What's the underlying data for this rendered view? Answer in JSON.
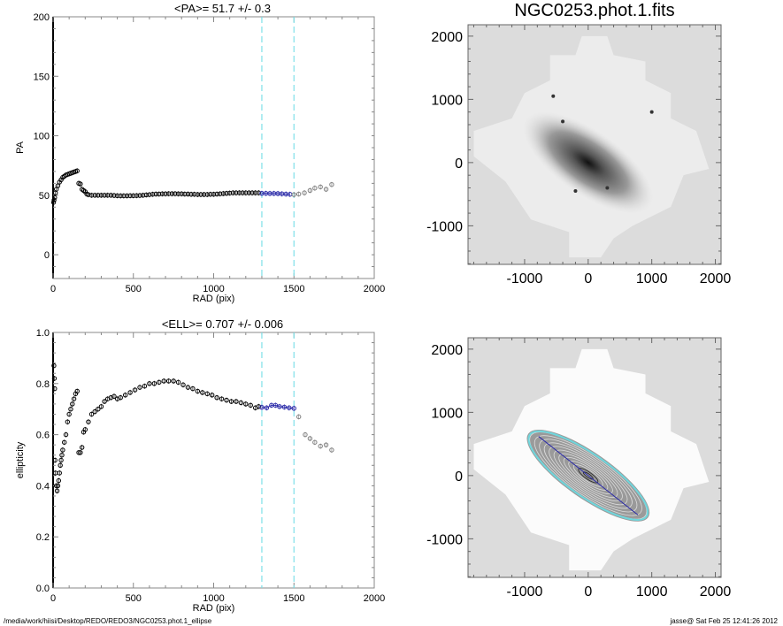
{
  "chart_data": [
    {
      "type": "scatter",
      "title": "<PA>=  51.7 +/-   0.3",
      "xlabel": "RAD (pix)",
      "ylabel": "PA",
      "xlim": [
        0,
        2000
      ],
      "ylim": [
        -20,
        200
      ],
      "xticks": [
        "0",
        "500",
        "1000",
        "1500",
        "2000"
      ],
      "yticks": [
        "0",
        "50",
        "100",
        "150",
        "200"
      ],
      "xtick_values": [
        0,
        500,
        1000,
        1500,
        2000
      ],
      "ytick_values": [
        0,
        50,
        100,
        150,
        200
      ],
      "vlines": [
        1300,
        1500
      ],
      "vline_color": "#7fe0e8",
      "series": [
        {
          "color": "#000000",
          "points": [
            [
              3,
              44
            ],
            [
              6,
              46
            ],
            [
              10,
              48
            ],
            [
              15,
              52
            ],
            [
              20,
              55
            ],
            [
              30,
              58
            ],
            [
              40,
              61
            ],
            [
              50,
              63
            ],
            [
              60,
              65
            ],
            [
              70,
              66
            ],
            [
              80,
              67
            ],
            [
              90,
              67.5
            ],
            [
              100,
              68
            ],
            [
              110,
              68.5
            ],
            [
              120,
              69
            ],
            [
              130,
              69.5
            ],
            [
              140,
              70
            ],
            [
              150,
              70.5
            ],
            [
              160,
              60
            ],
            [
              170,
              59.5
            ],
            [
              180,
              55
            ],
            [
              190,
              54
            ],
            [
              200,
              53
            ],
            [
              210,
              51
            ],
            [
              220,
              50.5
            ],
            [
              240,
              50
            ],
            [
              260,
              50
            ],
            [
              280,
              50
            ],
            [
              300,
              50
            ],
            [
              320,
              50
            ],
            [
              340,
              50
            ],
            [
              360,
              50
            ],
            [
              380,
              49.8
            ],
            [
              400,
              49.6
            ],
            [
              420,
              49.5
            ],
            [
              440,
              49.5
            ],
            [
              460,
              49.5
            ],
            [
              480,
              49.6
            ],
            [
              500,
              49.6
            ],
            [
              520,
              49.7
            ],
            [
              540,
              49.8
            ],
            [
              560,
              50
            ],
            [
              580,
              50.3
            ],
            [
              600,
              50.5
            ],
            [
              620,
              50.8
            ],
            [
              640,
              51
            ],
            [
              660,
              51
            ],
            [
              680,
              51.2
            ],
            [
              700,
              51.2
            ],
            [
              720,
              51.3
            ],
            [
              740,
              51.3
            ],
            [
              760,
              51.3
            ],
            [
              780,
              51.2
            ],
            [
              800,
              51.2
            ],
            [
              820,
              51
            ],
            [
              840,
              51
            ],
            [
              860,
              50.8
            ],
            [
              880,
              50.8
            ],
            [
              900,
              50.6
            ],
            [
              920,
              50.6
            ],
            [
              940,
              50.6
            ],
            [
              960,
              50.6
            ],
            [
              980,
              50.8
            ],
            [
              1000,
              50.8
            ],
            [
              1020,
              51
            ],
            [
              1040,
              51.2
            ],
            [
              1060,
              51.4
            ],
            [
              1080,
              51.6
            ],
            [
              1100,
              51.8
            ],
            [
              1120,
              52
            ],
            [
              1140,
              52
            ],
            [
              1160,
              52
            ],
            [
              1180,
              52
            ],
            [
              1200,
              52
            ],
            [
              1220,
              52
            ],
            [
              1240,
              52
            ],
            [
              1260,
              52
            ],
            [
              1280,
              52
            ]
          ]
        },
        {
          "color": "#2a2aa8",
          "points": [
            [
              1300,
              51.6
            ],
            [
              1325,
              51.6
            ],
            [
              1350,
              51.5
            ],
            [
              1375,
              51.5
            ],
            [
              1400,
              51.4
            ],
            [
              1425,
              51.2
            ],
            [
              1450,
              51
            ],
            [
              1475,
              50.8
            ]
          ]
        },
        {
          "color": "#808080",
          "points": [
            [
              1500,
              50.5
            ],
            [
              1530,
              51
            ],
            [
              1565,
              52
            ],
            [
              1600,
              54
            ],
            [
              1630,
              56
            ],
            [
              1665,
              57
            ],
            [
              1700,
              55
            ],
            [
              1735,
              59
            ]
          ]
        }
      ]
    },
    {
      "type": "scatter",
      "title": "<ELL>= 0.707 +/-  0.006",
      "xlabel": "RAD (pix)",
      "ylabel": "ellipticity",
      "xlim": [
        0,
        2000
      ],
      "ylim": [
        0,
        1
      ],
      "xticks": [
        "0",
        "500",
        "1000",
        "1500",
        "2000"
      ],
      "yticks": [
        "0.0",
        "0.2",
        "0.4",
        "0.6",
        "0.8",
        "1.0"
      ],
      "xtick_values": [
        0,
        500,
        1000,
        1500,
        2000
      ],
      "ytick_values": [
        0,
        0.2,
        0.4,
        0.6,
        0.8,
        1.0
      ],
      "vlines": [
        1300,
        1500
      ],
      "vline_color": "#7fe0e8",
      "series": [
        {
          "color": "#000000",
          "points": [
            [
              5,
              0.87
            ],
            [
              8,
              0.82
            ],
            [
              10,
              0.78
            ],
            [
              12,
              0.5
            ],
            [
              15,
              0.45
            ],
            [
              20,
              0.4
            ],
            [
              25,
              0.38
            ],
            [
              30,
              0.4
            ],
            [
              35,
              0.42
            ],
            [
              40,
              0.45
            ],
            [
              45,
              0.48
            ],
            [
              50,
              0.5
            ],
            [
              55,
              0.52
            ],
            [
              60,
              0.54
            ],
            [
              70,
              0.57
            ],
            [
              80,
              0.6
            ],
            [
              90,
              0.65
            ],
            [
              100,
              0.68
            ],
            [
              110,
              0.7
            ],
            [
              120,
              0.72
            ],
            [
              130,
              0.74
            ],
            [
              140,
              0.76
            ],
            [
              150,
              0.77
            ],
            [
              160,
              0.53
            ],
            [
              170,
              0.53
            ],
            [
              180,
              0.55
            ],
            [
              190,
              0.61
            ],
            [
              200,
              0.62
            ],
            [
              220,
              0.65
            ],
            [
              240,
              0.68
            ],
            [
              260,
              0.69
            ],
            [
              280,
              0.7
            ],
            [
              300,
              0.71
            ],
            [
              320,
              0.73
            ],
            [
              340,
              0.74
            ],
            [
              360,
              0.745
            ],
            [
              380,
              0.75
            ],
            [
              400,
              0.74
            ],
            [
              420,
              0.745
            ],
            [
              450,
              0.755
            ],
            [
              480,
              0.765
            ],
            [
              510,
              0.775
            ],
            [
              540,
              0.785
            ],
            [
              570,
              0.79
            ],
            [
              600,
              0.8
            ],
            [
              630,
              0.8
            ],
            [
              660,
              0.805
            ],
            [
              690,
              0.81
            ],
            [
              720,
              0.81
            ],
            [
              750,
              0.81
            ],
            [
              780,
              0.805
            ],
            [
              810,
              0.795
            ],
            [
              840,
              0.785
            ],
            [
              870,
              0.78
            ],
            [
              900,
              0.77
            ],
            [
              930,
              0.765
            ],
            [
              960,
              0.76
            ],
            [
              990,
              0.755
            ],
            [
              1020,
              0.745
            ],
            [
              1050,
              0.74
            ],
            [
              1080,
              0.735
            ],
            [
              1110,
              0.73
            ],
            [
              1140,
              0.73
            ],
            [
              1170,
              0.725
            ],
            [
              1200,
              0.72
            ],
            [
              1230,
              0.715
            ],
            [
              1260,
              0.705
            ],
            [
              1280,
              0.71
            ]
          ]
        },
        {
          "color": "#2a2aa8",
          "points": [
            [
              1300,
              0.707
            ],
            [
              1330,
              0.705
            ],
            [
              1360,
              0.715
            ],
            [
              1385,
              0.715
            ],
            [
              1410,
              0.71
            ],
            [
              1440,
              0.708
            ],
            [
              1470,
              0.705
            ],
            [
              1500,
              0.703
            ]
          ]
        },
        {
          "color": "#808080",
          "points": [
            [
              1530,
              0.67
            ],
            [
              1570,
              0.6
            ],
            [
              1600,
              0.585
            ],
            [
              1630,
              0.57
            ],
            [
              1665,
              0.555
            ],
            [
              1700,
              0.56
            ],
            [
              1735,
              0.54
            ]
          ]
        }
      ]
    }
  ],
  "images": {
    "title": "NGC0253.phot.1.fits",
    "xticks": [
      "-1000",
      "0",
      "1000",
      "2000"
    ],
    "yticks": [
      "-1000",
      "0",
      "1000",
      "2000"
    ],
    "xtick_values": [
      -1000,
      0,
      1000,
      2000
    ],
    "ytick_values": [
      -1000,
      0,
      1000,
      2000
    ],
    "xlim": [
      -1890,
      2090
    ],
    "ylim": [
      -1610,
      2180
    ],
    "ellipse_color": "#6fd6dc",
    "major_axis_color": "#2a2aa8"
  },
  "footer": {
    "path": "/media/work/hiisi/Desktop/REDO/REDO3/NGC0253.phot.1_ellipse",
    "stamp": "jasse@  Sat Feb 25 12:41:26 2012"
  }
}
